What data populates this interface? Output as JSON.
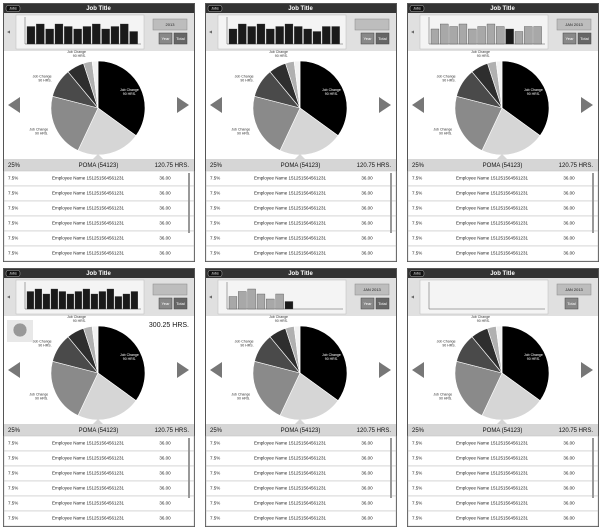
{
  "header_title": "Job Title",
  "nav_button": "Jobs",
  "pie_label": "Job Change",
  "pie_sublabel": "90 HRS.",
  "pie_colors": [
    "#000000",
    "#d6d6d6",
    "#8a8a8a",
    "#4a4a4a",
    "#2e2e2e",
    "#b0b0b0",
    "#f2f2f2"
  ],
  "bar_color": "#1a1a1a",
  "bar_muted_color": "#a8a8a8",
  "summary": {
    "percent": "25%",
    "name": "POMA (54123)",
    "hours": "120.75 HRS."
  },
  "rows": [
    {
      "percent": "7.5%",
      "name": "Employee Name 151251564561231",
      "value": "36.00"
    },
    {
      "percent": "7.5%",
      "name": "Employee Name 151251564561231",
      "value": "36.00"
    },
    {
      "percent": "7.5%",
      "name": "Employee Name 151251564561231",
      "value": "36.00"
    },
    {
      "percent": "7.5%",
      "name": "Employee Name 151251564561231",
      "value": "36.00"
    },
    {
      "percent": "7.5%",
      "name": "Employee Name 151251564561231",
      "value": "36.00"
    },
    {
      "percent": "7.5%",
      "name": "Employee Name 151251564561231",
      "value": "36.00"
    }
  ],
  "panels": [
    {
      "date": "2013",
      "buttons": [
        "Year",
        "Total"
      ],
      "bars": [
        7,
        8,
        6,
        8,
        7,
        6,
        7,
        8,
        6,
        7,
        8,
        5
      ],
      "muted": false,
      "pie": [
        35,
        22,
        22,
        10,
        6,
        3,
        2
      ]
    },
    {
      "buttons": [
        "Year",
        "Total"
      ],
      "bars": [
        6,
        8,
        7,
        8,
        6,
        7,
        8,
        7,
        6,
        5,
        7,
        7
      ],
      "muted": false,
      "pie": [
        35,
        22,
        22,
        10,
        6,
        3,
        2
      ]
    },
    {
      "date": "JAN 2013",
      "buttons": [
        "Year",
        "Total"
      ],
      "bars": [
        6,
        8,
        7,
        8,
        6,
        7,
        8,
        7,
        6,
        5,
        7,
        7
      ],
      "muted": true,
      "highlight": 8,
      "pie": [
        35,
        22,
        22,
        10,
        6,
        3,
        2
      ]
    },
    {
      "buttons": [
        "Year",
        "Total"
      ],
      "bars": [
        7,
        8,
        6,
        8,
        7,
        6,
        7,
        8,
        6,
        7,
        8,
        5,
        6,
        7
      ],
      "muted": false,
      "pie": [
        35,
        22,
        22,
        10,
        6,
        3,
        2
      ],
      "total": "300.25 HRS."
    },
    {
      "date": "JAN 2013",
      "buttons": [
        "Year",
        "Total"
      ],
      "bars": [
        5,
        7,
        8,
        6,
        4,
        6,
        3
      ],
      "muted": true,
      "highlight": 6,
      "pie": [
        35,
        22,
        22,
        10,
        6,
        3,
        2
      ]
    },
    {
      "date": "JAN 2013",
      "buttons": [
        "Total"
      ],
      "bars": [],
      "muted": true,
      "pie": [
        35,
        22,
        22,
        10,
        6,
        3,
        2
      ]
    }
  ]
}
